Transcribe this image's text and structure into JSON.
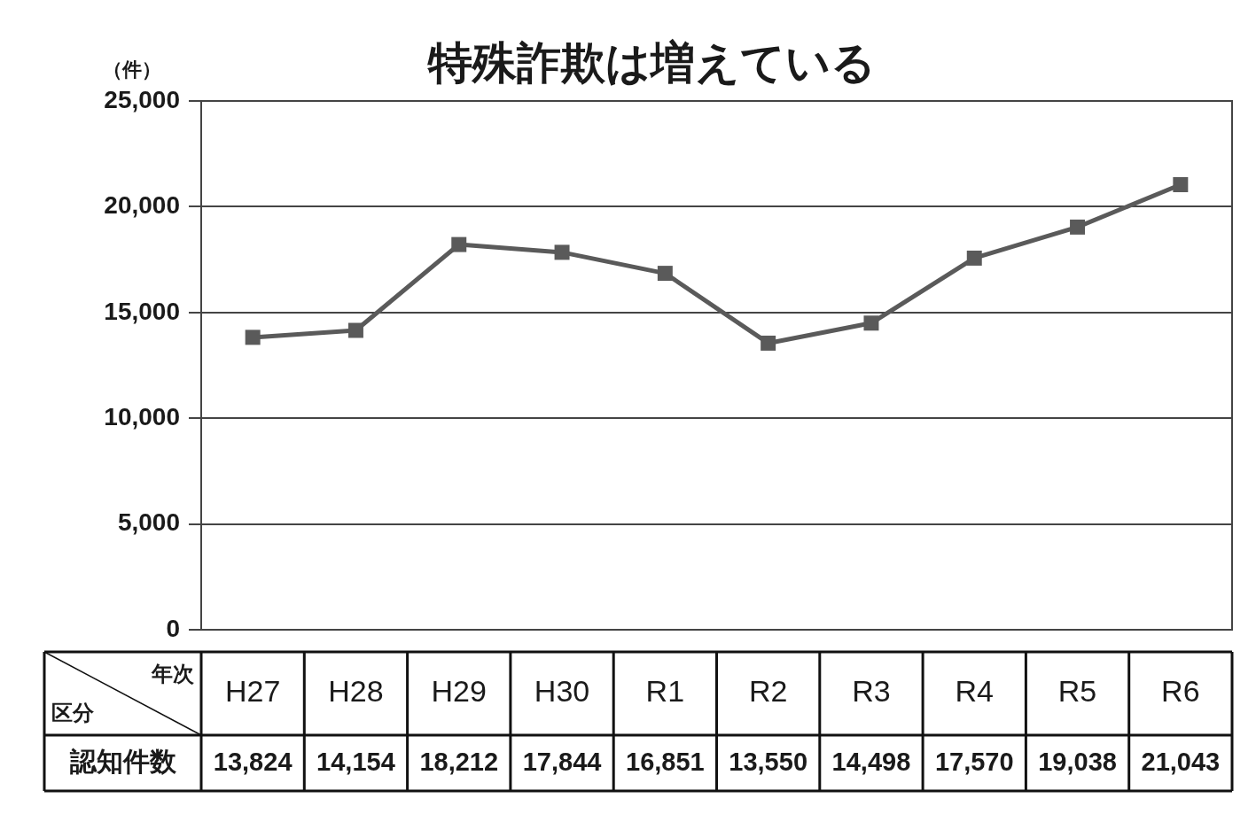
{
  "chart_data": {
    "type": "line",
    "title": "特殊詐欺は増えている",
    "ylabel": "（件）",
    "categories": [
      "H27",
      "H28",
      "H29",
      "H30",
      "R1",
      "R2",
      "R3",
      "R4",
      "R5",
      "R6"
    ],
    "values": [
      13824,
      14154,
      18212,
      17844,
      16851,
      13550,
      14498,
      17570,
      19038,
      21043
    ],
    "value_labels": [
      "13,824",
      "14,154",
      "18,212",
      "17,844",
      "16,851",
      "13,550",
      "14,498",
      "17,570",
      "19,038",
      "21,043"
    ],
    "color": "#5a5a5a",
    "marker": "square",
    "ylim": [
      0,
      25000
    ],
    "yticks": [
      0,
      {
        "value": 5000,
        "label": "5,000"
      },
      {
        "value": 10000,
        "label": "10,000"
      },
      {
        "value": 15000,
        "label": "15,000"
      },
      {
        "value": 20000,
        "label": "20,000"
      },
      {
        "value": 25000,
        "label": "25,000"
      }
    ],
    "grid": "y",
    "annotations": [
      "年次",
      "区分",
      "認知件数"
    ]
  }
}
